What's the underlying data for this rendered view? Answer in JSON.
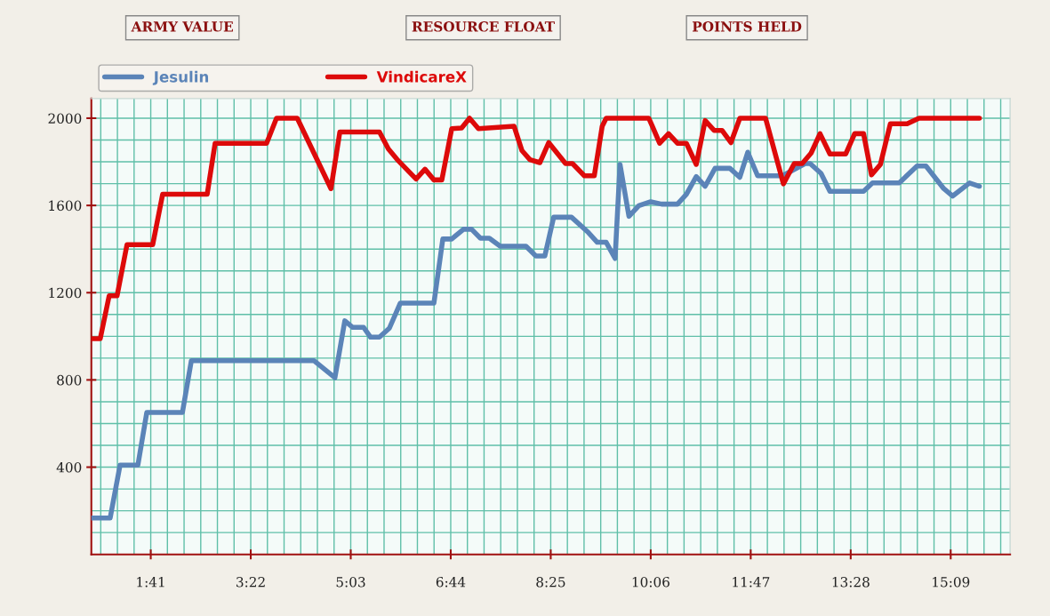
{
  "chart_data": {
    "type": "line",
    "annotations": [
      "ARMY VALUE",
      "RESOURCE FLOAT",
      "POINTS HELD"
    ],
    "xlim": [
      41,
      969
    ],
    "ylim": [
      0,
      2090
    ],
    "xticks": [
      {
        "value": 101,
        "label": "1:41"
      },
      {
        "value": 202,
        "label": "3:22"
      },
      {
        "value": 303,
        "label": "5:03"
      },
      {
        "value": 404,
        "label": "6:44"
      },
      {
        "value": 505,
        "label": "8:25"
      },
      {
        "value": 606,
        "label": "10:06"
      },
      {
        "value": 707,
        "label": "11:47"
      },
      {
        "value": 808,
        "label": "13:28"
      },
      {
        "value": 909,
        "label": "15:09"
      }
    ],
    "yticks": [
      400,
      800,
      1200,
      1600,
      2000
    ],
    "grid": true,
    "legend": "top",
    "marker": "none",
    "line_style": "solid",
    "series": [
      {
        "name": "Jesulin",
        "color": "#5b84b8",
        "x": [
          41,
          60,
          70,
          88,
          97,
          133,
          142,
          266,
          287,
          297,
          305,
          316,
          323,
          332,
          342,
          353,
          387,
          396,
          405,
          417,
          425,
          434,
          443,
          454,
          480,
          490,
          499,
          508,
          526,
          543,
          552,
          561,
          570,
          575,
          584,
          594,
          606,
          617,
          633,
          642,
          652,
          661,
          671,
          686,
          696,
          704,
          714,
          739,
          762,
          767,
          778,
          787,
          821,
          830,
          857,
          875,
          884,
          902,
          911,
          928,
          938
        ],
        "values": [
          167,
          167,
          409,
          409,
          651,
          651,
          888,
          888,
          810,
          1071,
          1041,
          1041,
          996,
          996,
          1037,
          1152,
          1152,
          1446,
          1446,
          1491,
          1491,
          1450,
          1450,
          1413,
          1413,
          1368,
          1368,
          1546,
          1546,
          1476,
          1431,
          1431,
          1357,
          1788,
          1550,
          1599,
          1617,
          1606,
          1606,
          1651,
          1732,
          1688,
          1770,
          1770,
          1729,
          1844,
          1736,
          1736,
          1792,
          1792,
          1747,
          1665,
          1665,
          1703,
          1703,
          1781,
          1781,
          1677,
          1643,
          1703,
          1688
        ]
      },
      {
        "name": "VindicareX",
        "color": "#dd0a0a",
        "x": [
          41,
          50,
          59,
          67,
          77,
          103,
          113,
          158,
          166,
          218,
          228,
          249,
          283,
          292,
          332,
          341,
          350,
          369,
          378,
          387,
          395,
          405,
          415,
          423,
          432,
          468,
          476,
          484,
          494,
          503,
          520,
          527,
          539,
          549,
          557,
          561,
          604,
          607,
          615,
          624,
          633,
          642,
          652,
          661,
          670,
          678,
          687,
          696,
          722,
          740,
          751,
          759,
          768,
          777,
          787,
          803,
          812,
          821,
          829,
          838,
          848,
          865,
          877,
          938
        ],
        "values": [
          989,
          989,
          1186,
          1186,
          1420,
          1420,
          1651,
          1651,
          1885,
          1885,
          2000,
          2000,
          1677,
          1937,
          1937,
          1859,
          1810,
          1721,
          1766,
          1717,
          1717,
          1952,
          1955,
          2000,
          1952,
          1963,
          1851,
          1810,
          1796,
          1888,
          1792,
          1792,
          1736,
          1736,
          1963,
          2000,
          2000,
          1970,
          1885,
          1929,
          1885,
          1885,
          1788,
          1989,
          1944,
          1944,
          1888,
          2000,
          2000,
          1699,
          1792,
          1792,
          1840,
          1929,
          1836,
          1836,
          1929,
          1929,
          1740,
          1788,
          1974,
          1974,
          2000,
          2000
        ]
      }
    ]
  }
}
